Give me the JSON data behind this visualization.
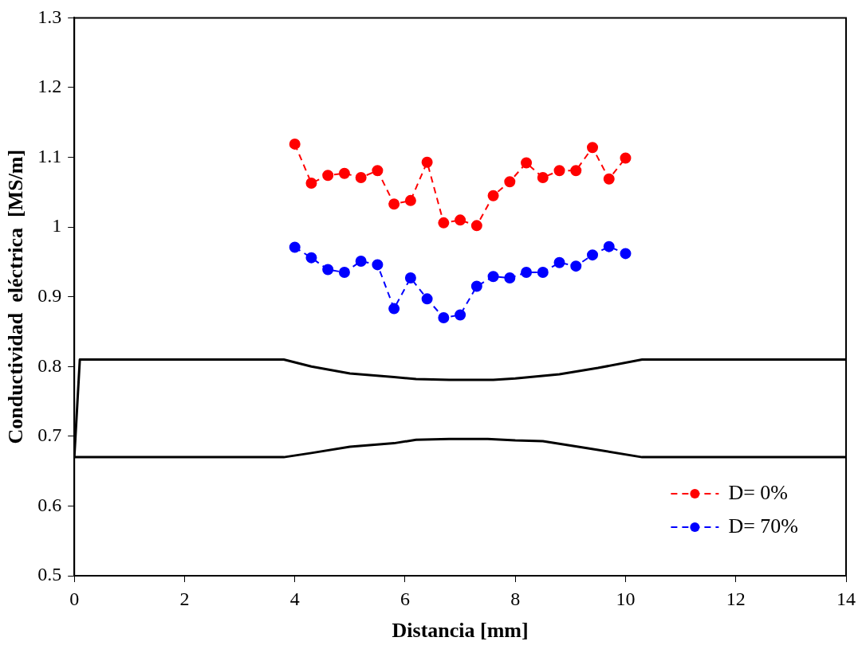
{
  "chart_data": {
    "type": "line",
    "xlabel": "Distancia [mm]",
    "ylabel": "Conductividad  eléctrica  [MS/m]",
    "xlim": [
      0,
      14
    ],
    "xticks": [
      0,
      2,
      4,
      6,
      8,
      10,
      12,
      14
    ],
    "ylim": [
      0.5,
      1.3
    ],
    "yticks": [
      0.5,
      0.6,
      0.7,
      0.8,
      0.9,
      1,
      1.1,
      1.2,
      1.3
    ],
    "legend": "bottom right",
    "grid": false,
    "series": [
      {
        "name": "D= 0%",
        "color": "#ff0000",
        "marker": "circle",
        "line_style": "dashed",
        "x": [
          4,
          4.3,
          4.6,
          4.9,
          5.2,
          5.5,
          5.8,
          6.1,
          6.4,
          6.7,
          7,
          7.3,
          7.6,
          7.9,
          8.2,
          8.5,
          8.8,
          9.1,
          9.4,
          9.7,
          10
        ],
        "values": [
          1.119,
          1.063,
          1.074,
          1.077,
          1.071,
          1.081,
          1.033,
          1.038,
          1.093,
          1.006,
          1.01,
          1.002,
          1.045,
          1.065,
          1.092,
          1.071,
          1.081,
          1.081,
          1.114,
          1.069,
          1.099
        ]
      },
      {
        "name": "D= 70%",
        "color": "#0000ff",
        "marker": "circle",
        "line_style": "dashed",
        "x": [
          4,
          4.3,
          4.6,
          4.9,
          5.2,
          5.5,
          5.8,
          6.1,
          6.4,
          6.7,
          7,
          7.3,
          7.6,
          7.9,
          8.2,
          8.5,
          8.8,
          9.1,
          9.4,
          9.7,
          10
        ],
        "values": [
          0.971,
          0.956,
          0.939,
          0.935,
          0.951,
          0.946,
          0.883,
          0.927,
          0.897,
          0.87,
          0.874,
          0.915,
          0.929,
          0.927,
          0.935,
          0.935,
          0.949,
          0.944,
          0.96,
          0.972,
          0.962
        ]
      },
      {
        "color": "#000000",
        "marker": "none",
        "line_style": "solid",
        "x": [
          0,
          0.1,
          3.8,
          4.3,
          5,
          5.8,
          6.2,
          6.8,
          7.6,
          8,
          8.8,
          9.5,
          10.3,
          14
        ],
        "values": [
          0.67,
          0.81,
          0.81,
          0.8,
          0.79,
          0.785,
          0.782,
          0.781,
          0.781,
          0.783,
          0.789,
          0.798,
          0.81,
          0.81
        ]
      },
      {
        "color": "#000000",
        "marker": "none",
        "line_style": "solid",
        "x": [
          0,
          3.8,
          4.3,
          5,
          5.8,
          6.2,
          6.8,
          7.5,
          8,
          8.5,
          9.3,
          10.3,
          14
        ],
        "values": [
          0.67,
          0.67,
          0.676,
          0.685,
          0.69,
          0.695,
          0.696,
          0.696,
          0.694,
          0.693,
          0.683,
          0.67,
          0.67
        ]
      }
    ]
  }
}
